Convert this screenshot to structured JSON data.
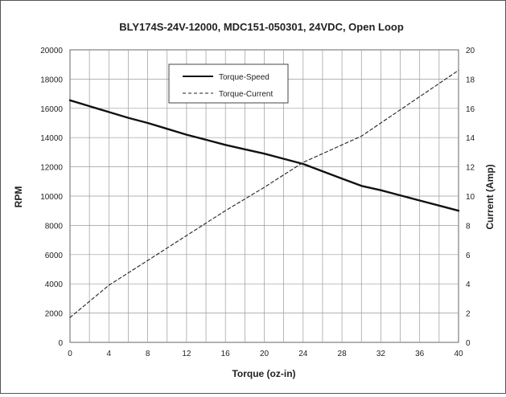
{
  "chart_data": {
    "type": "line",
    "title": "BLY174S-24V-12000, MDC151-050301, 24VDC, Open Loop",
    "xlabel": "Torque (oz-in)",
    "ylabel": "RPM",
    "y2label": "Current (Amp)",
    "xlim": [
      0,
      40
    ],
    "ylim": [
      0,
      20000
    ],
    "y2lim": [
      0,
      20
    ],
    "x_ticks": [
      "0",
      "4",
      "8",
      "12",
      "16",
      "20",
      "24",
      "28",
      "32",
      "36",
      "40"
    ],
    "y_ticks": [
      "0",
      "2000",
      "4000",
      "6000",
      "8000",
      "10000",
      "12000",
      "14000",
      "16000",
      "18000",
      "20000"
    ],
    "y2_ticks": [
      "0",
      "2",
      "4",
      "6",
      "8",
      "10",
      "12",
      "14",
      "16",
      "18",
      "20"
    ],
    "grid": true,
    "legend_position": "top-center",
    "series": [
      {
        "name": "Torque-Speed",
        "axis": "left",
        "style": "solid",
        "color": "#111111",
        "x": [
          0,
          2,
          4,
          6,
          8,
          10,
          12,
          14,
          16,
          18,
          20,
          22,
          24,
          26,
          28,
          30,
          32,
          34,
          36,
          38,
          40
        ],
        "values": [
          16550,
          16150,
          15750,
          15350,
          15000,
          14600,
          14200,
          13850,
          13500,
          13200,
          12900,
          12550,
          12200,
          11700,
          11200,
          10700,
          10400,
          10050,
          9700,
          9350,
          9000
        ]
      },
      {
        "name": "Torque-Current",
        "axis": "right",
        "style": "dashed",
        "color": "#222222",
        "x": [
          0,
          4,
          8,
          12,
          16,
          20,
          24,
          28,
          30,
          34,
          40
        ],
        "values": [
          1.7,
          3.9,
          5.6,
          7.3,
          9.0,
          10.6,
          12.3,
          13.5,
          14.1,
          15.9,
          18.6
        ]
      }
    ]
  }
}
